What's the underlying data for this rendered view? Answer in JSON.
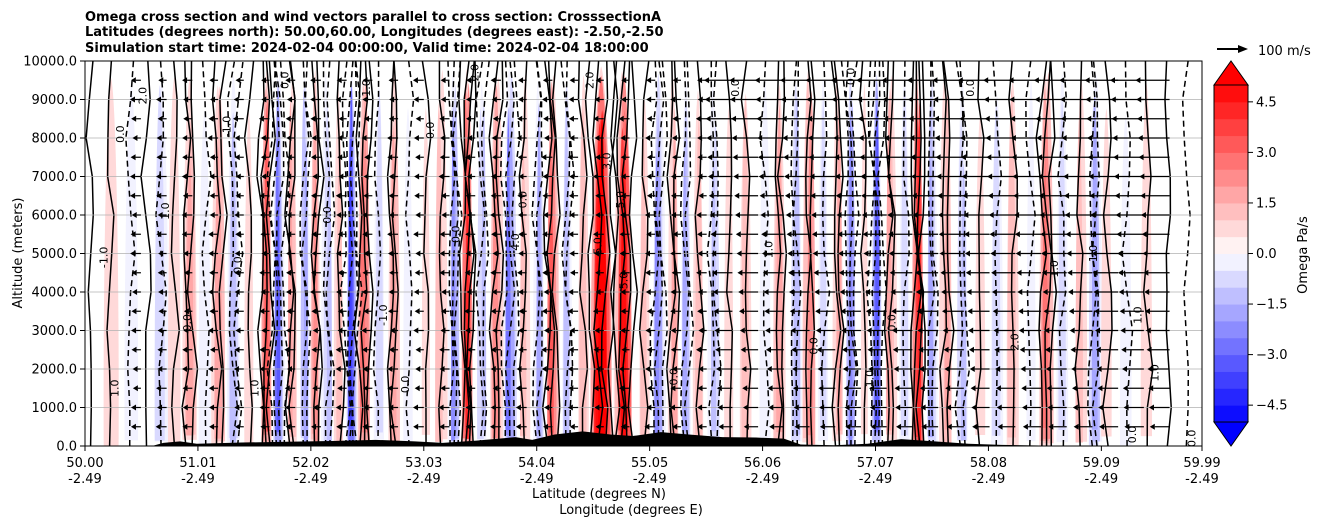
{
  "chart_data": {
    "type": "heatmap",
    "title_lines": [
      "Omega cross section and wind vectors parallel to cross section: CrosssectionA",
      "Latitudes (degrees north): 50.00,60.00, Longitudes (degrees east): -2.50,-2.50",
      "Simulation start time: 2024-02-04 00:00:00, Valid time: 2024-02-04 18:00:00"
    ],
    "ylabel": "Altitude (meters)",
    "xlabel_lines": [
      "Latitude (degrees N)",
      "Longitude (degrees E)"
    ],
    "ylim": [
      0,
      10000
    ],
    "y_ticks": [
      {
        "value": 0,
        "label": "0.0"
      },
      {
        "value": 1000,
        "label": "1000.0"
      },
      {
        "value": 2000,
        "label": "2000.0"
      },
      {
        "value": 3000,
        "label": "3000.0"
      },
      {
        "value": 4000,
        "label": "4000.0"
      },
      {
        "value": 5000,
        "label": "5000.0"
      },
      {
        "value": 6000,
        "label": "6000.0"
      },
      {
        "value": 7000,
        "label": "7000.0"
      },
      {
        "value": 8000,
        "label": "8000.0"
      },
      {
        "value": 9000,
        "label": "9000.0"
      },
      {
        "value": 10000,
        "label": "10000.0"
      }
    ],
    "xlim": [
      50.0,
      59.99
    ],
    "x_ticks": [
      {
        "value": 50.0,
        "lat": "50.00",
        "lon": "-2.49"
      },
      {
        "value": 51.01,
        "lat": "51.01",
        "lon": "-2.49"
      },
      {
        "value": 52.02,
        "lat": "52.02",
        "lon": "-2.49"
      },
      {
        "value": 53.03,
        "lat": "53.03",
        "lon": "-2.49"
      },
      {
        "value": 54.04,
        "lat": "54.04",
        "lon": "-2.49"
      },
      {
        "value": 55.05,
        "lat": "55.05",
        "lon": "-2.49"
      },
      {
        "value": 56.06,
        "lat": "56.06",
        "lon": "-2.49"
      },
      {
        "value": 57.07,
        "lat": "57.07",
        "lon": "-2.49"
      },
      {
        "value": 58.08,
        "lat": "58.08",
        "lon": "-2.49"
      },
      {
        "value": 59.09,
        "lat": "59.09",
        "lon": "-2.49"
      },
      {
        "value": 59.99,
        "lat": "59.99",
        "lon": "-2.49"
      }
    ],
    "grid": true,
    "colorbar": {
      "label": "Omega Pa/s",
      "range": [
        -5,
        5
      ],
      "extend": "both",
      "ticks": [
        {
          "value": 4.5,
          "label": "4.5"
        },
        {
          "value": 3.0,
          "label": "3.0"
        },
        {
          "value": 1.5,
          "label": "1.5"
        },
        {
          "value": 0.0,
          "label": "0.0"
        },
        {
          "value": -1.5,
          "label": "−1.5"
        },
        {
          "value": -3.0,
          "label": "−3.0"
        },
        {
          "value": -4.5,
          "label": "−4.5"
        }
      ],
      "colors": {
        "negative": "#0000ff",
        "zero": "#ffffff",
        "positive": "#ff0000"
      }
    },
    "quiver_key": {
      "label": "100 m/s"
    },
    "omega_bands": [
      {
        "lat": 50.05,
        "w": 0.1,
        "v": 0.3
      },
      {
        "lat": 50.22,
        "w": 0.1,
        "v": 0.8
      },
      {
        "lat": 50.4,
        "w": 0.1,
        "v": -0.6
      },
      {
        "lat": 50.55,
        "w": 0.08,
        "v": 0.4
      },
      {
        "lat": 50.68,
        "w": 0.08,
        "v": -1.4
      },
      {
        "lat": 50.8,
        "w": 0.08,
        "v": 0.9
      },
      {
        "lat": 50.93,
        "w": 0.08,
        "v": 1.6
      },
      {
        "lat": 51.08,
        "w": 0.08,
        "v": -0.8
      },
      {
        "lat": 51.2,
        "w": 0.07,
        "v": 1.9
      },
      {
        "lat": 51.34,
        "w": 0.07,
        "v": -1.6
      },
      {
        "lat": 51.48,
        "w": 0.06,
        "v": 0.8
      },
      {
        "lat": 51.62,
        "w": 0.05,
        "v": 3.3
      },
      {
        "lat": 51.73,
        "w": 0.05,
        "v": -3.6
      },
      {
        "lat": 51.85,
        "w": 0.05,
        "v": 1.6
      },
      {
        "lat": 51.97,
        "w": 0.05,
        "v": -2.2
      },
      {
        "lat": 52.07,
        "w": 0.05,
        "v": 2.2
      },
      {
        "lat": 52.17,
        "w": 0.05,
        "v": -1.8
      },
      {
        "lat": 52.28,
        "w": 0.05,
        "v": 1.4
      },
      {
        "lat": 52.38,
        "w": 0.05,
        "v": -4.2
      },
      {
        "lat": 52.5,
        "w": 0.06,
        "v": 2.9
      },
      {
        "lat": 52.62,
        "w": 0.06,
        "v": -1.3
      },
      {
        "lat": 52.76,
        "w": 0.06,
        "v": 1.9
      },
      {
        "lat": 52.9,
        "w": 0.06,
        "v": -0.9
      },
      {
        "lat": 53.05,
        "w": 0.06,
        "v": 0.6
      },
      {
        "lat": 53.18,
        "w": 0.06,
        "v": 1.4
      },
      {
        "lat": 53.3,
        "w": 0.05,
        "v": -2.7
      },
      {
        "lat": 53.42,
        "w": 0.05,
        "v": 4.1
      },
      {
        "lat": 53.55,
        "w": 0.05,
        "v": -1.6
      },
      {
        "lat": 53.68,
        "w": 0.06,
        "v": 2.4
      },
      {
        "lat": 53.8,
        "w": 0.06,
        "v": -3.1
      },
      {
        "lat": 53.93,
        "w": 0.06,
        "v": 1.1
      },
      {
        "lat": 54.06,
        "w": 0.05,
        "v": -2.1
      },
      {
        "lat": 54.18,
        "w": 0.06,
        "v": 3.3
      },
      {
        "lat": 54.32,
        "w": 0.05,
        "v": -1.9
      },
      {
        "lat": 54.45,
        "w": 0.06,
        "v": 1.3
      },
      {
        "lat": 54.62,
        "w": 0.1,
        "v": 6.0
      },
      {
        "lat": 54.82,
        "w": 0.08,
        "v": 4.9
      },
      {
        "lat": 55.0,
        "w": 0.06,
        "v": 1.1
      },
      {
        "lat": 55.13,
        "w": 0.06,
        "v": -2.6
      },
      {
        "lat": 55.26,
        "w": 0.05,
        "v": 1.8
      },
      {
        "lat": 55.38,
        "w": 0.05,
        "v": -2.4
      },
      {
        "lat": 55.5,
        "w": 0.06,
        "v": 1.3
      },
      {
        "lat": 55.63,
        "w": 0.06,
        "v": -1.5
      },
      {
        "lat": 55.77,
        "w": 0.06,
        "v": 0.8
      },
      {
        "lat": 55.92,
        "w": 0.07,
        "v": 1.1
      },
      {
        "lat": 56.08,
        "w": 0.07,
        "v": -0.9
      },
      {
        "lat": 56.22,
        "w": 0.07,
        "v": 1.6
      },
      {
        "lat": 56.35,
        "w": 0.06,
        "v": -1.9
      },
      {
        "lat": 56.48,
        "w": 0.06,
        "v": 2.3
      },
      {
        "lat": 56.61,
        "w": 0.06,
        "v": -1.1
      },
      {
        "lat": 56.73,
        "w": 0.05,
        "v": 1.6
      },
      {
        "lat": 56.85,
        "w": 0.05,
        "v": -2.6
      },
      {
        "lat": 56.97,
        "w": 0.05,
        "v": 0.6
      },
      {
        "lat": 57.08,
        "w": 0.05,
        "v": -3.9
      },
      {
        "lat": 57.2,
        "w": 0.06,
        "v": 1.6
      },
      {
        "lat": 57.33,
        "w": 0.06,
        "v": -1.3
      },
      {
        "lat": 57.45,
        "w": 0.05,
        "v": 4.3
      },
      {
        "lat": 57.57,
        "w": 0.05,
        "v": -2.3
      },
      {
        "lat": 57.7,
        "w": 0.06,
        "v": 1.5
      },
      {
        "lat": 57.85,
        "w": 0.06,
        "v": -1.6
      },
      {
        "lat": 58.0,
        "w": 0.07,
        "v": 0.7
      },
      {
        "lat": 58.15,
        "w": 0.07,
        "v": -1.3
      },
      {
        "lat": 58.3,
        "w": 0.07,
        "v": 1.3
      },
      {
        "lat": 58.45,
        "w": 0.06,
        "v": -0.8
      },
      {
        "lat": 58.6,
        "w": 0.06,
        "v": 2.9
      },
      {
        "lat": 58.75,
        "w": 0.07,
        "v": -1.1
      },
      {
        "lat": 58.9,
        "w": 0.07,
        "v": 1.1
      },
      {
        "lat": 59.03,
        "w": 0.06,
        "v": -2.4
      },
      {
        "lat": 59.15,
        "w": 0.07,
        "v": 0.8
      },
      {
        "lat": 59.32,
        "w": 0.08,
        "v": -0.7
      },
      {
        "lat": 59.5,
        "w": 0.09,
        "v": 0.5
      },
      {
        "lat": 59.68,
        "w": 0.09,
        "v": 0.2
      },
      {
        "lat": 59.85,
        "w": 0.09,
        "v": -0.3
      }
    ],
    "terrain": [
      {
        "lat": 50.0,
        "alt": 0
      },
      {
        "lat": 50.6,
        "alt": 0
      },
      {
        "lat": 50.7,
        "alt": 80
      },
      {
        "lat": 50.85,
        "alt": 120
      },
      {
        "lat": 51.0,
        "alt": 60
      },
      {
        "lat": 51.4,
        "alt": 90
      },
      {
        "lat": 51.8,
        "alt": 110
      },
      {
        "lat": 52.2,
        "alt": 130
      },
      {
        "lat": 52.6,
        "alt": 160
      },
      {
        "lat": 52.95,
        "alt": 120
      },
      {
        "lat": 53.2,
        "alt": 80
      },
      {
        "lat": 53.5,
        "alt": 140
      },
      {
        "lat": 53.85,
        "alt": 230
      },
      {
        "lat": 54.0,
        "alt": 160
      },
      {
        "lat": 54.2,
        "alt": 300
      },
      {
        "lat": 54.45,
        "alt": 380
      },
      {
        "lat": 54.7,
        "alt": 300
      },
      {
        "lat": 54.9,
        "alt": 260
      },
      {
        "lat": 55.15,
        "alt": 360
      },
      {
        "lat": 55.4,
        "alt": 300
      },
      {
        "lat": 55.7,
        "alt": 230
      },
      {
        "lat": 56.0,
        "alt": 220
      },
      {
        "lat": 56.25,
        "alt": 190
      },
      {
        "lat": 56.4,
        "alt": 40
      },
      {
        "lat": 56.7,
        "alt": 20
      },
      {
        "lat": 57.0,
        "alt": 60
      },
      {
        "lat": 57.3,
        "alt": 180
      },
      {
        "lat": 57.6,
        "alt": 120
      },
      {
        "lat": 57.9,
        "alt": 60
      },
      {
        "lat": 58.2,
        "alt": 30
      },
      {
        "lat": 58.6,
        "alt": 10
      },
      {
        "lat": 59.0,
        "alt": 0
      },
      {
        "lat": 59.99,
        "alt": 0
      }
    ],
    "contour_labels": [
      {
        "lat": 50.35,
        "alt": 8100,
        "text": "0.0"
      },
      {
        "lat": 50.55,
        "alt": 9100,
        "text": "2.0"
      },
      {
        "lat": 50.2,
        "alt": 4900,
        "text": "-1.0"
      },
      {
        "lat": 50.3,
        "alt": 1500,
        "text": "1.0"
      },
      {
        "lat": 50.75,
        "alt": 6100,
        "text": "1.0"
      },
      {
        "lat": 50.95,
        "alt": 3200,
        "text": "0.0"
      },
      {
        "lat": 51.3,
        "alt": 8300,
        "text": "-1.0"
      },
      {
        "lat": 51.4,
        "alt": 4700,
        "text": "0.0"
      },
      {
        "lat": 51.55,
        "alt": 1500,
        "text": "1.0"
      },
      {
        "lat": 51.82,
        "alt": 9500,
        "text": "0.0"
      },
      {
        "lat": 52.2,
        "alt": 6000,
        "text": "0.0"
      },
      {
        "lat": 52.55,
        "alt": 9300,
        "text": "1.0"
      },
      {
        "lat": 52.7,
        "alt": 3400,
        "text": "-1.0"
      },
      {
        "lat": 53.12,
        "alt": 8200,
        "text": "0.0"
      },
      {
        "lat": 53.35,
        "alt": 5500,
        "text": "0.0"
      },
      {
        "lat": 53.52,
        "alt": 9700,
        "text": "2.0"
      },
      {
        "lat": 53.88,
        "alt": 5300,
        "text": "4.0"
      },
      {
        "lat": 53.95,
        "alt": 6400,
        "text": "0.0"
      },
      {
        "lat": 54.55,
        "alt": 9500,
        "text": "2.0"
      },
      {
        "lat": 54.62,
        "alt": 5200,
        "text": "5.0"
      },
      {
        "lat": 54.7,
        "alt": 7400,
        "text": "3.0"
      },
      {
        "lat": 54.82,
        "alt": 6400,
        "text": "5.0"
      },
      {
        "lat": 54.85,
        "alt": 4300,
        "text": "5.0"
      },
      {
        "lat": 55.3,
        "alt": 1800,
        "text": "0.0"
      },
      {
        "lat": 55.85,
        "alt": 9300,
        "text": "0.0"
      },
      {
        "lat": 56.15,
        "alt": 5100,
        "text": "1.0"
      },
      {
        "lat": 56.55,
        "alt": 2600,
        "text": "0.0"
      },
      {
        "lat": 56.88,
        "alt": 9600,
        "text": "0.0"
      },
      {
        "lat": 57.25,
        "alt": 3200,
        "text": "0.0"
      },
      {
        "lat": 57.95,
        "alt": 9300,
        "text": "0.0"
      },
      {
        "lat": 58.35,
        "alt": 2700,
        "text": "2.0"
      },
      {
        "lat": 58.7,
        "alt": 4600,
        "text": "1.0"
      },
      {
        "lat": 59.05,
        "alt": 5000,
        "text": "1.0"
      },
      {
        "lat": 59.45,
        "alt": 3400,
        "text": "1.0"
      },
      {
        "lat": 59.6,
        "alt": 1900,
        "text": "1.0"
      },
      {
        "lat": 59.4,
        "alt": 300,
        "text": "0.0"
      },
      {
        "lat": 59.93,
        "alt": 200,
        "text": "0.0"
      },
      {
        "lat": 57.05,
        "alt": 1700,
        "text": "-1.0"
      },
      {
        "lat": 52.9,
        "alt": 1600,
        "text": "0.0"
      }
    ]
  }
}
